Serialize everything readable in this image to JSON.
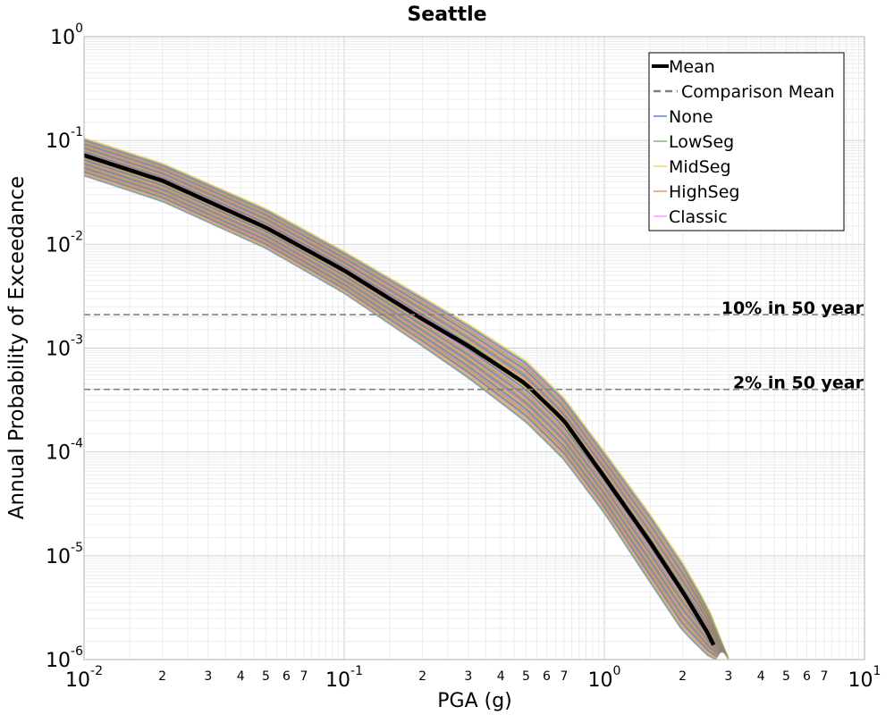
{
  "chart_data": {
    "type": "line",
    "title": "Seattle",
    "xlabel": "PGA (g)",
    "ylabel": "Annual Probability of Exceedance",
    "x_scale": "log",
    "y_scale": "log",
    "xlim": [
      0.01,
      10
    ],
    "ylim": [
      1e-06,
      1
    ],
    "grid": true,
    "legend_position": "top-right",
    "x_major_ticks": [
      {
        "base": "10",
        "exp": "-2"
      },
      {
        "base": "10",
        "exp": "-1"
      },
      {
        "base": "10",
        "exp": "0"
      },
      {
        "base": "10",
        "exp": "1"
      }
    ],
    "x_minor_tick_labels": [
      "2",
      "3",
      "4",
      "5",
      "6",
      "7"
    ],
    "y_major_ticks": [
      {
        "base": "10",
        "exp": "0"
      },
      {
        "base": "10",
        "exp": "-1"
      },
      {
        "base": "10",
        "exp": "-2"
      },
      {
        "base": "10",
        "exp": "-3"
      },
      {
        "base": "10",
        "exp": "-4"
      },
      {
        "base": "10",
        "exp": "-5"
      },
      {
        "base": "10",
        "exp": "-6"
      }
    ],
    "mean_curve": {
      "x": [
        0.01,
        0.02,
        0.05,
        0.1,
        0.2,
        0.3,
        0.5,
        0.7,
        1.0,
        1.5,
        2.0,
        2.5,
        2.8
      ],
      "y": [
        0.072,
        0.041,
        0.0145,
        0.0056,
        0.0019,
        0.00105,
        0.00045,
        0.0002,
        5.75e-05,
        1.35e-05,
        4.5e-06,
        1.8e-06,
        1e-06
      ]
    },
    "band": {
      "upper": {
        "x": [
          0.01,
          0.02,
          0.05,
          0.1,
          0.2,
          0.3,
          0.5,
          0.7,
          1.0,
          1.5,
          2.0,
          2.5,
          3.0
        ],
        "y": [
          0.105,
          0.06,
          0.022,
          0.0085,
          0.0031,
          0.0017,
          0.00075,
          0.00033,
          0.0001,
          2.5e-05,
          8.5e-06,
          3.2e-06,
          1e-06
        ]
      },
      "lower": {
        "x": [
          0.01,
          0.02,
          0.05,
          0.1,
          0.2,
          0.3,
          0.5,
          0.7,
          1.0,
          1.5,
          2.0,
          2.5,
          2.7
        ],
        "y": [
          0.046,
          0.026,
          0.0092,
          0.0034,
          0.00105,
          0.00052,
          0.000195,
          8.5e-05,
          2.6e-05,
          5.6e-06,
          1.9e-06,
          1.1e-06,
          1e-06
        ]
      }
    },
    "series": [
      {
        "name": "Mean",
        "color": "#000000",
        "style": "solid-thick"
      },
      {
        "name": "Comparison Mean",
        "color": "#808080",
        "style": "dashed"
      },
      {
        "name": "None",
        "color": "#3a5fcd",
        "style": "solid"
      },
      {
        "name": "LowSeg",
        "color": "#5aaa46",
        "style": "solid"
      },
      {
        "name": "MidSeg",
        "color": "#f0c94a",
        "style": "solid"
      },
      {
        "name": "HighSeg",
        "color": "#e87c3e",
        "style": "solid"
      },
      {
        "name": "Classic",
        "color": "#ff7fff",
        "style": "solid"
      }
    ],
    "reference_lines": [
      {
        "label": "10% in 50 year",
        "y": 0.0021
      },
      {
        "label": "2% in 50 year",
        "y": 0.0004
      }
    ]
  }
}
